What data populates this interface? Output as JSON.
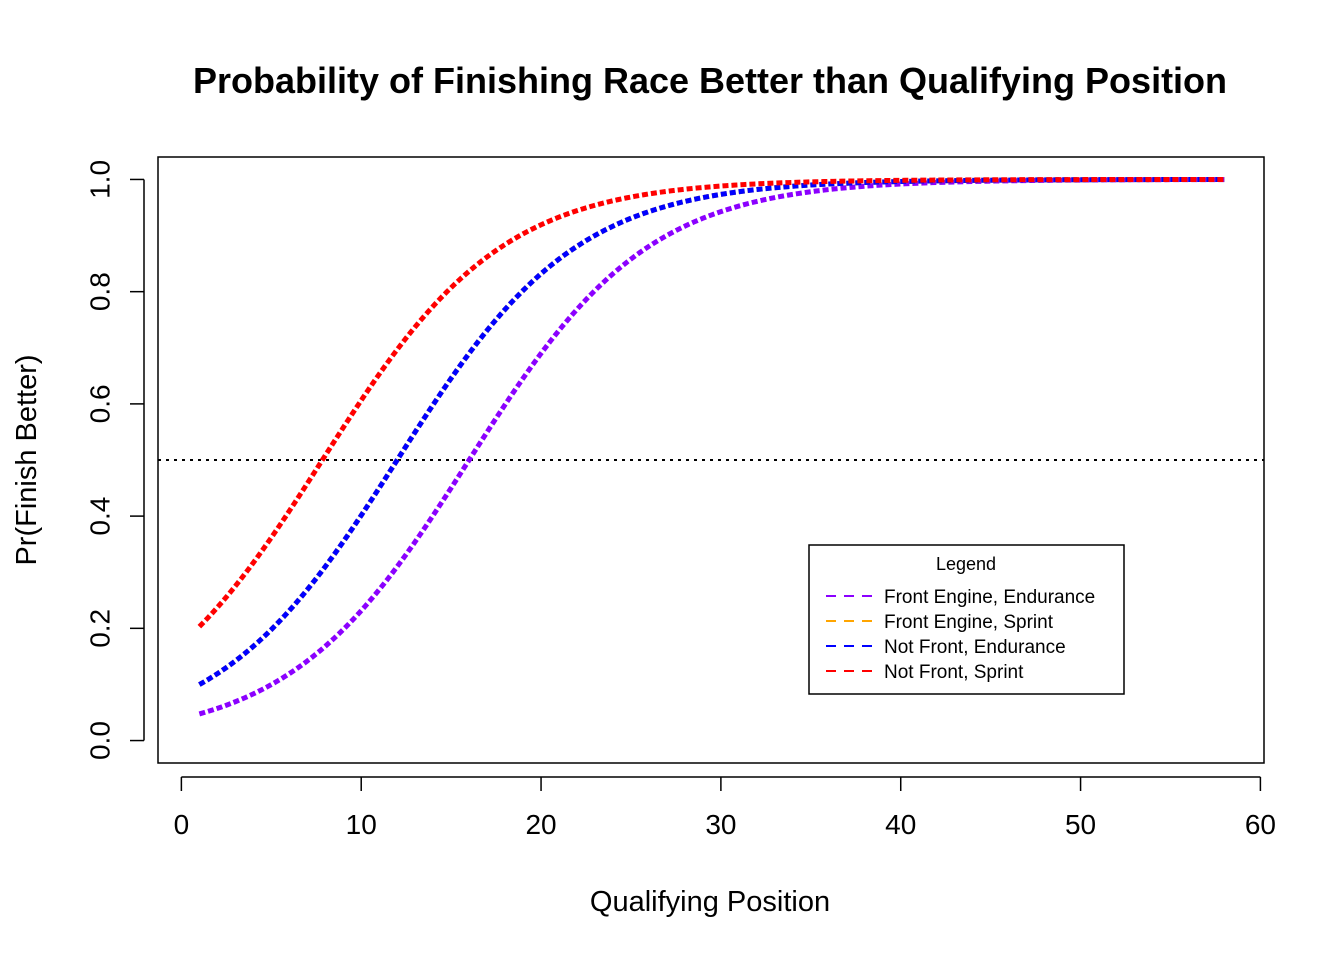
{
  "chart_data": {
    "type": "line",
    "title": "Probability of Finishing Race Better than Qualifying Position",
    "xlabel": "Qualifying Position",
    "ylabel": "Pr(Finish Better)",
    "xlim": [
      -1.3,
      60.2
    ],
    "ylim": [
      -0.04,
      1.04
    ],
    "xticks": [
      "0",
      "10",
      "20",
      "30",
      "40",
      "50",
      "60"
    ],
    "yticks": [
      "0.0",
      "0.2",
      "0.4",
      "0.6",
      "0.8",
      "1.0"
    ],
    "grid": false,
    "reference_line": {
      "y": 0.5,
      "style": "dotted",
      "color": "#000000"
    },
    "legend": {
      "title": "Legend",
      "position": "bottom-right"
    },
    "x_range": [
      1,
      58
    ],
    "series": [
      {
        "name": "Front Engine, Endurance",
        "color": "#8B00FF",
        "midpoint": 16.0,
        "slope": 0.2,
        "ymax": 1.0
      },
      {
        "name": "Front Engine, Sprint",
        "color": "#FFA500",
        "midpoint": 12.0,
        "slope": 0.2,
        "ymax": 1.0
      },
      {
        "name": "Not Front, Endurance",
        "color": "#0000FF",
        "midpoint": 12.0,
        "slope": 0.2,
        "ymax": 1.0
      },
      {
        "name": "Not Front, Sprint",
        "color": "#FF0000",
        "midpoint": 7.84,
        "slope": 0.2,
        "ymax": 1.0
      }
    ]
  }
}
